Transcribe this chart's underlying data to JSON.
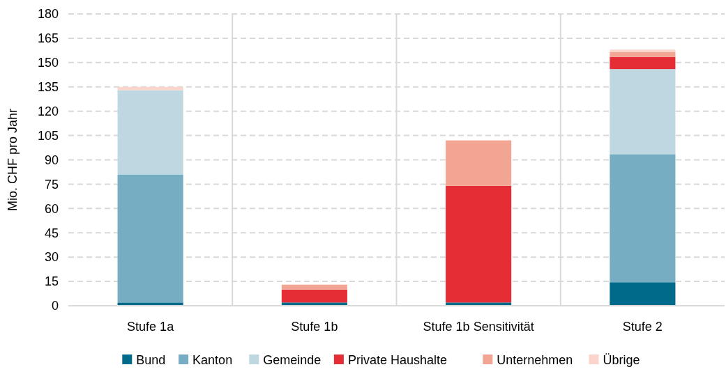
{
  "chart_data": {
    "type": "bar",
    "stacked": true,
    "ylabel": "Mio. CHF pro Jahr",
    "categories": [
      "Stufe 1a",
      "Stufe 1b",
      "Stufe 1b Sensitivität",
      "Stufe 2"
    ],
    "series": [
      {
        "name": "Bund",
        "color": "#006a8a",
        "values": [
          2,
          2,
          2,
          14.5
        ]
      },
      {
        "name": "Kanton",
        "color": "#76adc2",
        "values": [
          79,
          0,
          0,
          79
        ]
      },
      {
        "name": "Gemeinde",
        "color": "#bed7e0",
        "values": [
          52,
          0,
          0,
          52.5
        ]
      },
      {
        "name": "Private Haushalte",
        "color": "#e52d36",
        "values": [
          0,
          8,
          72,
          7.5
        ]
      },
      {
        "name": "Unternehmen",
        "color": "#f3a593",
        "values": [
          0,
          3,
          28,
          3
        ]
      },
      {
        "name": "Übrige",
        "color": "#fbd5cb",
        "values": [
          2,
          0,
          0,
          1.5
        ]
      }
    ],
    "ylim": [
      0,
      180
    ],
    "yticks": [
      0,
      15,
      30,
      45,
      60,
      75,
      90,
      105,
      120,
      135,
      150,
      165,
      180
    ],
    "grid": "y",
    "legend": "bottom"
  }
}
